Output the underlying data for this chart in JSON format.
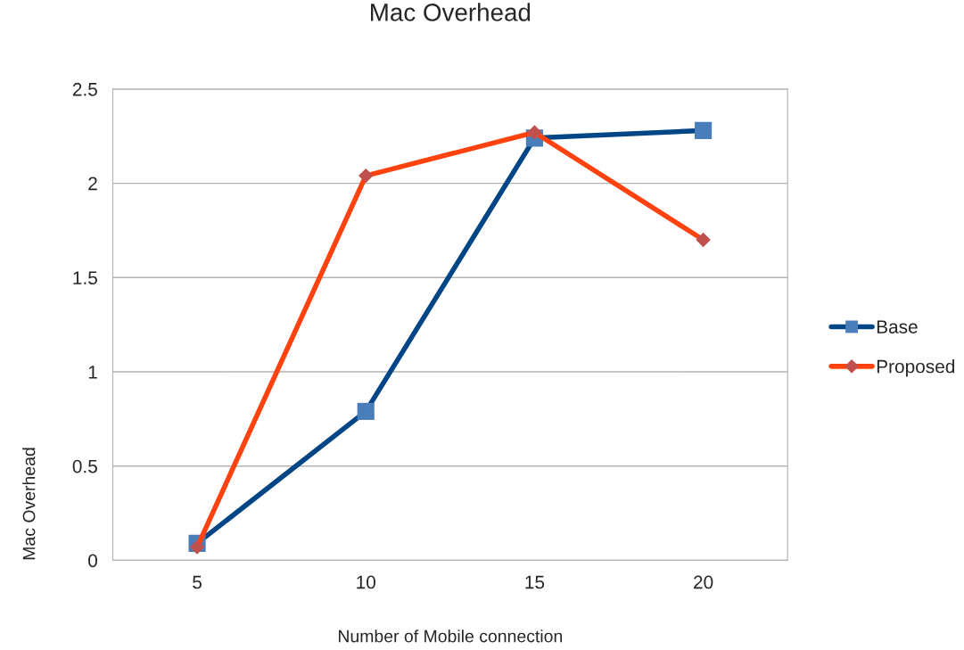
{
  "chart_data": {
    "type": "line",
    "title": "Mac Overhead",
    "xlabel": "Number of Mobile connection",
    "ylabel": "Mac Overhead",
    "categories": [
      "5",
      "10",
      "15",
      "20"
    ],
    "series": [
      {
        "name": "Base",
        "color": "#004586",
        "colors": [
          "#4a7ebb",
          "#4a7ebb",
          "#4a7ebb",
          "#4a7ebb"
        ],
        "marker": "square",
        "values": [
          0.09,
          0.79,
          2.24,
          2.28
        ]
      },
      {
        "name": "Proposed",
        "color": "#ff420e",
        "colors": [
          "#c0504d",
          "#c0504d",
          "#c0504d",
          "#c0504d"
        ],
        "marker": "diamond",
        "values": [
          0.07,
          2.04,
          2.27,
          1.7
        ]
      }
    ],
    "ylim": [
      0,
      2.5
    ],
    "yticks": [
      0,
      0.5,
      1,
      1.5,
      2,
      2.5
    ],
    "grid": "y",
    "legend": "right",
    "line_style": "solid"
  }
}
